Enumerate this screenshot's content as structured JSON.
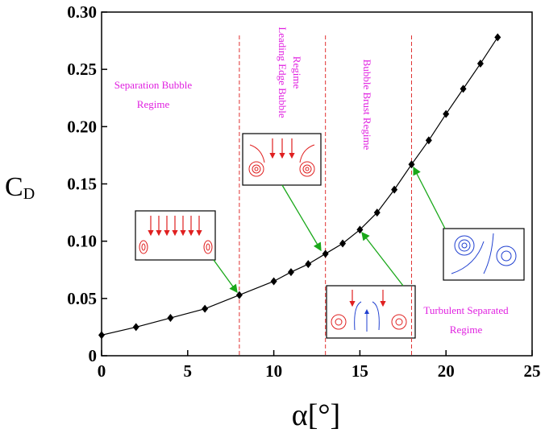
{
  "chart_data": {
    "type": "line",
    "x_label": "α[°]",
    "y_label": "C",
    "y_label_sub": "D",
    "x": [
      0,
      2,
      4,
      6,
      8,
      10,
      11,
      12,
      13,
      14,
      15,
      16,
      17,
      18,
      19,
      20,
      21,
      22,
      23
    ],
    "series": [
      {
        "color": "#000000",
        "values": [
          0.018,
          0.025,
          0.033,
          0.041,
          0.053,
          0.065,
          0.073,
          0.08,
          0.089,
          0.098,
          0.11,
          0.125,
          0.145,
          0.167,
          0.188,
          0.211,
          0.233,
          0.255,
          0.278
        ]
      }
    ],
    "xlim": [
      0,
      25
    ],
    "xticks": [
      0,
      5,
      10,
      15,
      20,
      25
    ],
    "ylim": [
      0,
      0.3
    ],
    "yticks": [
      0,
      0.05,
      {
        "value": 0.1,
        "label": "0.10"
      },
      0.15,
      {
        "value": 0.2,
        "label": "0.20"
      },
      0.25,
      {
        "value": 0.3,
        "label": "0.30"
      }
    ],
    "regime_boundaries": [
      8,
      13,
      18
    ],
    "annotations": [
      {
        "lines": [
          "Separation Bubble",
          "Regime"
        ]
      },
      {
        "lines": [
          "Leading Edge Bubble",
          "Regime"
        ]
      },
      {
        "lines": [
          "Bubble Brust Regime"
        ]
      },
      {
        "lines": [
          "Turbulent Separated",
          "Regime"
        ]
      }
    ]
  }
}
